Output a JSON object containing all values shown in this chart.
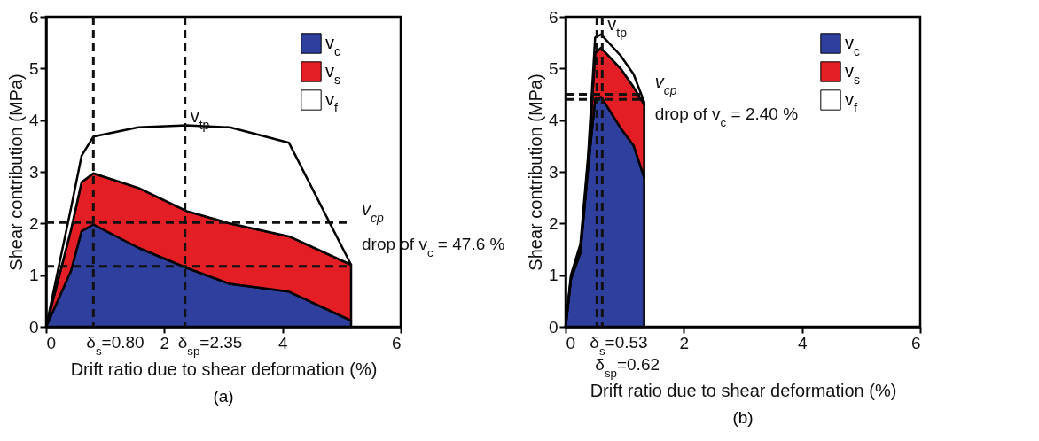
{
  "chart_data": [
    {
      "type": "area",
      "title": "(a)",
      "stacked": true,
      "xlabel": "Drift ratio due to shear deformation (%)",
      "ylabel": "Shear contribution (MPa)",
      "xlim": [
        0,
        6
      ],
      "ylim": [
        0,
        6
      ],
      "xticks": [
        0,
        2,
        4,
        6
      ],
      "yticks": [
        0,
        1,
        2,
        3,
        4,
        5,
        6
      ],
      "legend": "top right",
      "x": [
        0,
        0.42,
        0.6,
        0.8,
        1.56,
        2.38,
        3.11,
        4.11,
        5.16
      ],
      "series": [
        {
          "name": "v$_{c}$",
          "color": "#2e3f9e",
          "values": [
            0,
            1.08,
            1.85,
            1.98,
            1.53,
            1.14,
            0.83,
            0.68,
            0.12
          ]
        },
        {
          "name": "v$_{s}$",
          "color": "#e31e24",
          "values": [
            0,
            0.79,
            0.95,
            0.99,
            1.16,
            1.1,
            1.17,
            1.07,
            1.08
          ]
        },
        {
          "name": "v$_{f}$",
          "color": "#ffffff",
          "values": [
            0,
            0.42,
            0.51,
            0.71,
            1.17,
            1.66,
            1.86,
            1.81,
            0
          ]
        }
      ],
      "ref_lines": [
        {
          "axis": "x",
          "value": 0.8,
          "label": "δ$_{s}$=0.80",
          "line_style": "dashed"
        },
        {
          "axis": "x",
          "value": 2.35,
          "label": "δ$_{sp}$=2.35",
          "line_style": "dashed"
        },
        {
          "axis": "y",
          "value": 2.02,
          "label": "v$_{cp}$",
          "line_style": "dashed"
        },
        {
          "axis": "y",
          "value": 1.17,
          "label": null,
          "line_style": "dashed"
        }
      ],
      "annotations": [
        {
          "text": "v$_{tp}$",
          "x": 2.35,
          "y": 3.9
        },
        "drop of v$_{c}$ = 47.6 %"
      ]
    },
    {
      "type": "area",
      "title": "(b)",
      "stacked": true,
      "xlabel": "Drift ratio due to shear deformation (%)",
      "ylabel": "Shear contribution (MPa)",
      "xlim": [
        0,
        6
      ],
      "ylim": [
        0,
        6
      ],
      "xticks": [
        0,
        2,
        4,
        6
      ],
      "yticks": [
        0,
        1,
        2,
        3,
        4,
        5,
        6
      ],
      "legend": "top right",
      "x": [
        0,
        0.09,
        0.25,
        0.38,
        0.5,
        0.6,
        0.93,
        1.15,
        1.33
      ],
      "series": [
        {
          "name": "v$_{c}$",
          "color": "#2e3f9e",
          "values": [
            0,
            0.92,
            1.43,
            3.06,
            4.41,
            4.45,
            3.85,
            3.51,
            2.89
          ]
        },
        {
          "name": "v$_{s}$",
          "color": "#e31e24",
          "values": [
            0,
            0.03,
            0.07,
            0.14,
            0.89,
            0.95,
            1.15,
            1.13,
            1.41
          ]
        },
        {
          "name": "v$_{f}$",
          "color": "#ffffff",
          "values": [
            0,
            0.05,
            0.1,
            0.1,
            0.3,
            0.26,
            0.25,
            0.25,
            0.05
          ]
        }
      ],
      "ref_lines": [
        {
          "axis": "x",
          "value": 0.53,
          "label": "δ$_{s}$=0.53",
          "line_style": "dashed"
        },
        {
          "axis": "x",
          "value": 0.62,
          "label": "δ$_{sp}$=0.62",
          "line_style": "dashed"
        },
        {
          "axis": "y",
          "value": 4.5,
          "label": "v$_{cp}$",
          "line_style": "dashed"
        },
        {
          "axis": "y",
          "value": 4.4,
          "label": null,
          "line_style": "dashed"
        }
      ],
      "annotations": [
        {
          "text": "v$_{tp}$",
          "x": 0.62,
          "y": 5.68
        },
        "drop of v$_{c}$ = 2.40 %"
      ]
    }
  ]
}
